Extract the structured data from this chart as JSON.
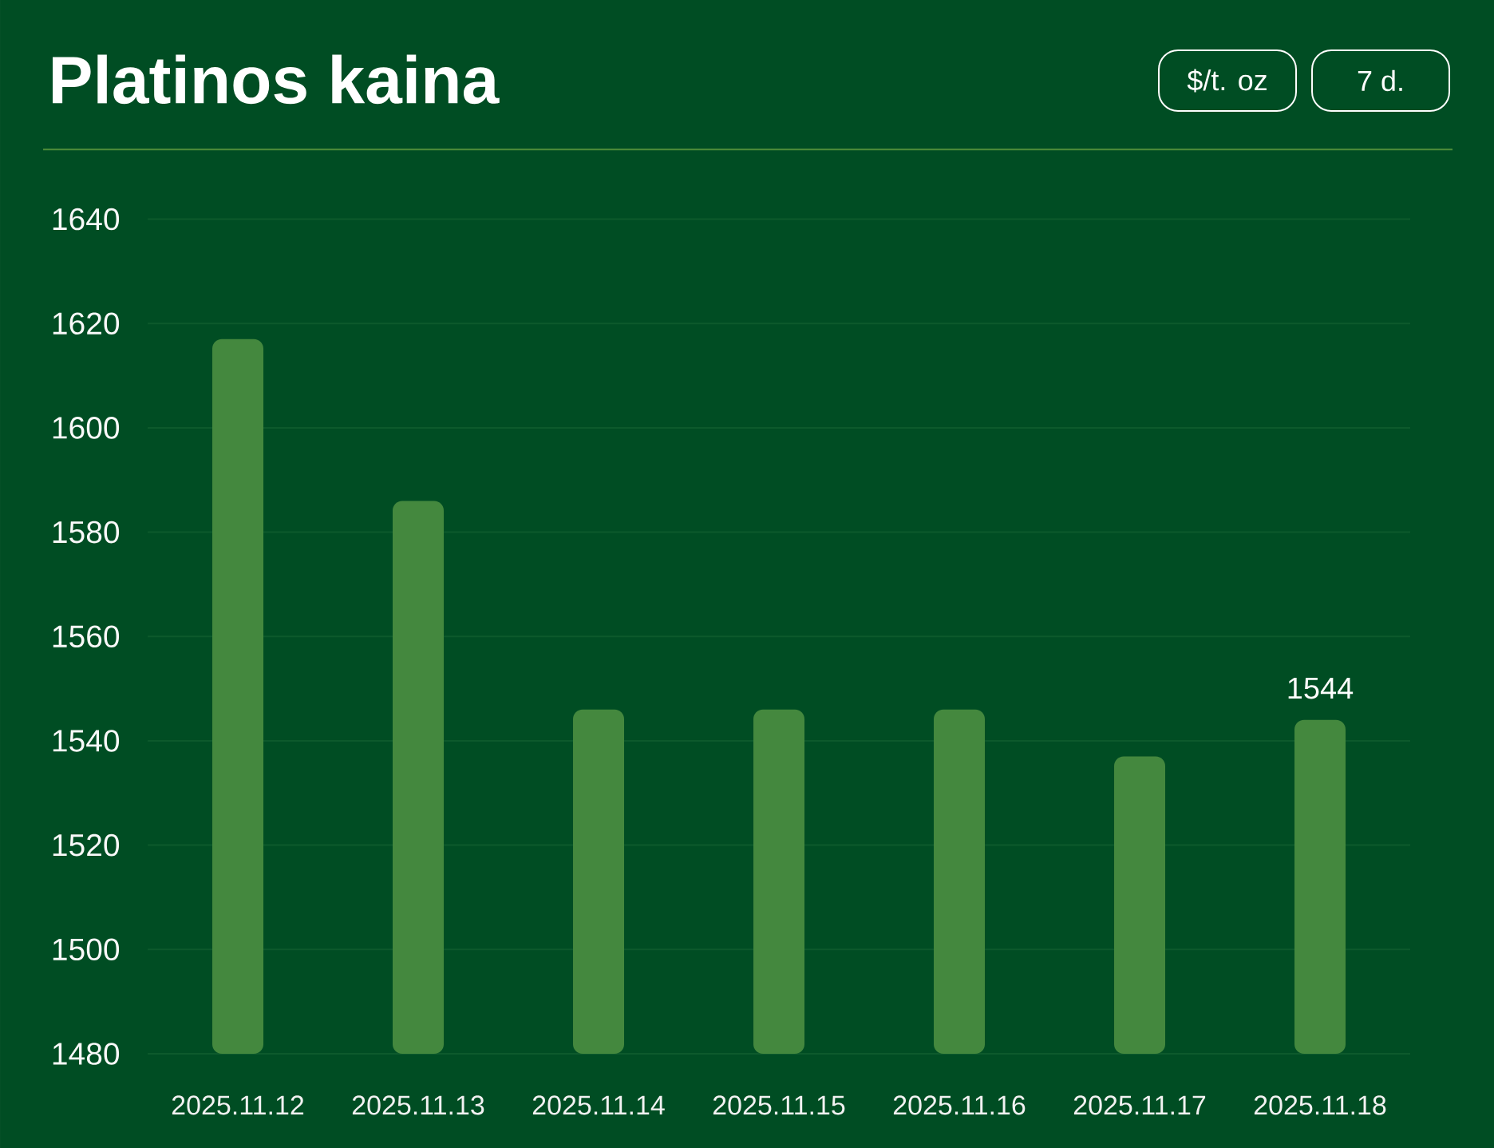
{
  "chart_data": {
    "type": "bar",
    "title": "Platinos kaina",
    "annotations": [
      "$/t. oz",
      "7 d."
    ],
    "categories": [
      "2025.11.12",
      "2025.11.13",
      "2025.11.14",
      "2025.11.15",
      "2025.11.16",
      "2025.11.17",
      "2025.11.18"
    ],
    "values": [
      1617,
      1586,
      1546,
      1546,
      1546,
      1537,
      1544
    ],
    "color": "#44883e",
    "value_labels": [
      null,
      null,
      null,
      null,
      null,
      null,
      "1544"
    ],
    "ylim": [
      1480,
      1640
    ],
    "yticks": [
      1480,
      1500,
      1520,
      1540,
      1560,
      1580,
      1600,
      1620,
      1640
    ],
    "grid": "y"
  }
}
